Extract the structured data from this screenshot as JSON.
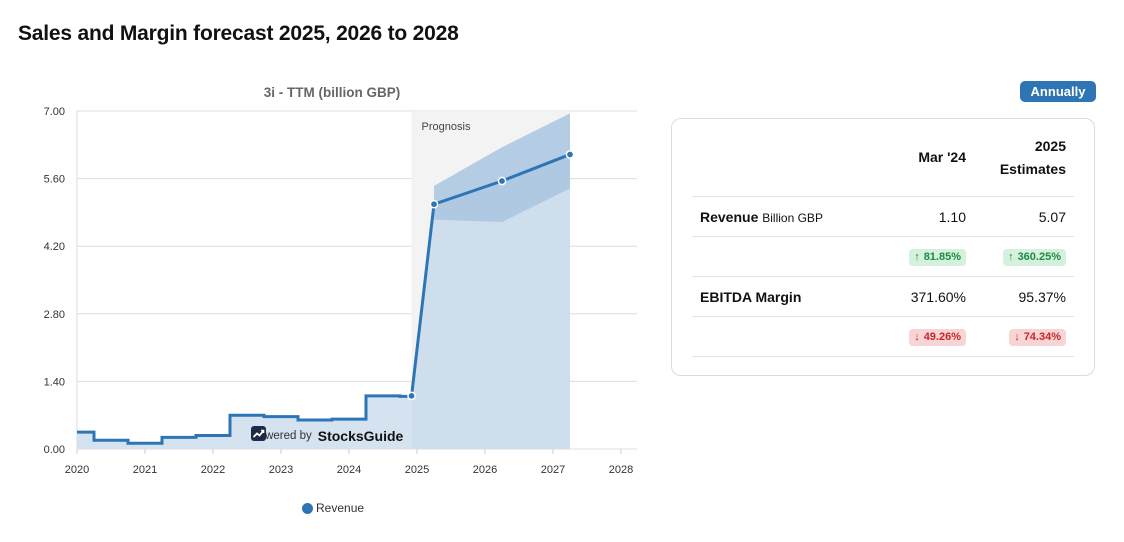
{
  "page": {
    "title": "Sales and Margin forecast 2025, 2026 to 2028"
  },
  "chart_data": {
    "type": "line",
    "title": "3i - TTM (billion GBP)",
    "xlim": [
      2020,
      2028
    ],
    "ylim": [
      0,
      7
    ],
    "x_ticks": [
      "2020",
      "2021",
      "2022",
      "2023",
      "2024",
      "2025",
      "2026",
      "2027",
      "2028"
    ],
    "y_ticks": [
      "0.00",
      "1.40",
      "2.80",
      "4.20",
      "5.60",
      "7.00"
    ],
    "grid": true,
    "legend_position": "bottom",
    "series": [
      {
        "name": "Revenue",
        "color": "#2e75b6",
        "segment": "historical",
        "step": true,
        "x": [
          2020.0,
          2020.25,
          2020.75,
          2021.25,
          2021.75,
          2022.25,
          2022.75,
          2023.25,
          2023.75,
          2024.25,
          2024.75,
          2024.92
        ],
        "y": [
          0.35,
          0.18,
          0.12,
          0.24,
          0.28,
          0.7,
          0.67,
          0.6,
          0.62,
          1.1,
          1.09,
          1.1
        ]
      },
      {
        "name": "Revenue",
        "segment": "forecast",
        "step": false,
        "x": [
          2024.92,
          2025.25,
          2026.25,
          2027.25
        ],
        "y": [
          1.1,
          5.07,
          5.55,
          6.1
        ]
      }
    ],
    "forecast_band": {
      "x": [
        2025.25,
        2026.25,
        2027.25
      ],
      "upper": [
        5.45,
        6.25,
        6.95
      ],
      "lower": [
        4.75,
        4.7,
        5.4
      ]
    },
    "prognosis_region": {
      "label": "Prognosis",
      "x_start": 2024.92,
      "x_end": 2027.25
    },
    "watermark": {
      "text": "Powered by",
      "brand": "StocksGuide"
    }
  },
  "toggle": {
    "label": "Annually"
  },
  "table": {
    "columns": [
      {
        "line1": "Mar '24",
        "line2": ""
      },
      {
        "line1": "2025",
        "line2": "Estimates"
      }
    ],
    "rows": [
      {
        "label": "Revenue",
        "unit": "Billion GBP",
        "values": [
          "1.10",
          "5.07"
        ],
        "changes": [
          {
            "text": "81.85%",
            "direction": "up"
          },
          {
            "text": "360.25%",
            "direction": "up"
          }
        ]
      },
      {
        "label": "EBITDA Margin",
        "unit": "",
        "values": [
          "371.60%",
          "95.37%"
        ],
        "changes": [
          {
            "text": "49.26%",
            "direction": "down"
          },
          {
            "text": "74.34%",
            "direction": "down"
          }
        ]
      }
    ]
  },
  "colors": {
    "accent": "#2e75b6",
    "positive": "#1e8a43",
    "negative": "#c62828"
  }
}
